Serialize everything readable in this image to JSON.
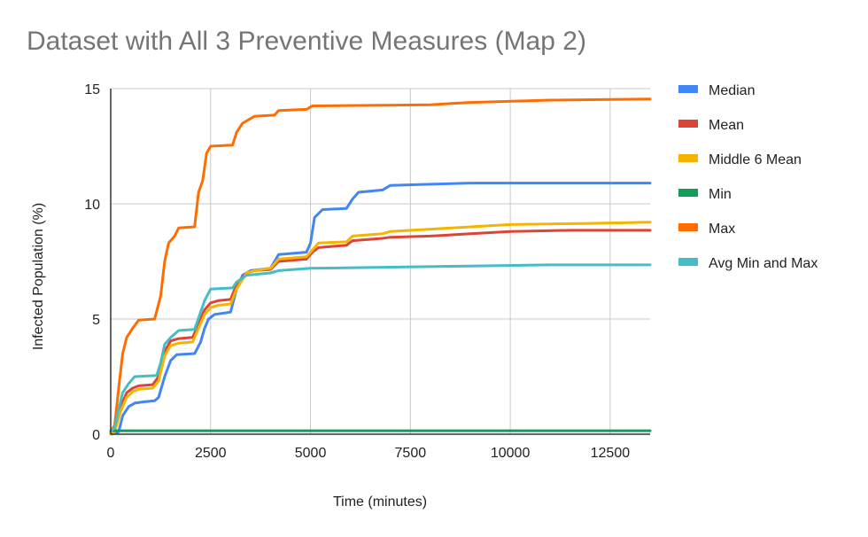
{
  "chart_data": {
    "type": "line",
    "title": "Dataset with All 3 Preventive Measures (Map 2)",
    "xlabel": "Time (minutes)",
    "ylabel": "Infected Population (%)",
    "xlim": [
      0,
      13500
    ],
    "ylim": [
      0,
      15
    ],
    "xticks": [
      0,
      2500,
      5000,
      7500,
      10000,
      12500
    ],
    "yticks": [
      0,
      5,
      10,
      15
    ],
    "grid": true,
    "legend_position": "right",
    "series": [
      {
        "name": "Median",
        "color": "#4285F4",
        "points": [
          [
            0,
            0
          ],
          [
            200,
            0.1
          ],
          [
            300,
            0.8
          ],
          [
            450,
            1.2
          ],
          [
            600,
            1.35
          ],
          [
            800,
            1.4
          ],
          [
            1100,
            1.45
          ],
          [
            1200,
            1.6
          ],
          [
            1350,
            2.5
          ],
          [
            1500,
            3.2
          ],
          [
            1650,
            3.45
          ],
          [
            2100,
            3.5
          ],
          [
            2250,
            4.0
          ],
          [
            2350,
            4.6
          ],
          [
            2450,
            5.0
          ],
          [
            2600,
            5.2
          ],
          [
            3000,
            5.3
          ],
          [
            3150,
            6.3
          ],
          [
            3300,
            6.9
          ],
          [
            3500,
            7.1
          ],
          [
            4000,
            7.2
          ],
          [
            4200,
            7.8
          ],
          [
            4900,
            7.9
          ],
          [
            5000,
            8.3
          ],
          [
            5100,
            9.4
          ],
          [
            5300,
            9.75
          ],
          [
            5900,
            9.8
          ],
          [
            6050,
            10.2
          ],
          [
            6200,
            10.5
          ],
          [
            6800,
            10.6
          ],
          [
            7000,
            10.8
          ],
          [
            8000,
            10.85
          ],
          [
            9000,
            10.9
          ],
          [
            13500,
            10.9
          ]
        ]
      },
      {
        "name": "Mean",
        "color": "#DB4437",
        "points": [
          [
            0,
            0
          ],
          [
            100,
            0.1
          ],
          [
            250,
            1.2
          ],
          [
            400,
            1.8
          ],
          [
            550,
            2.0
          ],
          [
            700,
            2.1
          ],
          [
            1050,
            2.15
          ],
          [
            1200,
            2.5
          ],
          [
            1350,
            3.6
          ],
          [
            1500,
            4.05
          ],
          [
            1700,
            4.15
          ],
          [
            2050,
            4.2
          ],
          [
            2200,
            4.8
          ],
          [
            2350,
            5.4
          ],
          [
            2500,
            5.7
          ],
          [
            2700,
            5.8
          ],
          [
            3000,
            5.85
          ],
          [
            3150,
            6.5
          ],
          [
            3400,
            7.0
          ],
          [
            3600,
            7.1
          ],
          [
            4000,
            7.15
          ],
          [
            4200,
            7.5
          ],
          [
            4900,
            7.6
          ],
          [
            5050,
            7.9
          ],
          [
            5200,
            8.1
          ],
          [
            5900,
            8.2
          ],
          [
            6050,
            8.4
          ],
          [
            6800,
            8.5
          ],
          [
            7000,
            8.55
          ],
          [
            8000,
            8.6
          ],
          [
            9000,
            8.7
          ],
          [
            10000,
            8.8
          ],
          [
            11500,
            8.85
          ],
          [
            13500,
            8.85
          ]
        ]
      },
      {
        "name": "Middle 6 Mean",
        "color": "#F4B400",
        "points": [
          [
            0,
            0
          ],
          [
            100,
            0.1
          ],
          [
            250,
            1.0
          ],
          [
            400,
            1.6
          ],
          [
            550,
            1.85
          ],
          [
            700,
            1.95
          ],
          [
            1050,
            2.0
          ],
          [
            1200,
            2.3
          ],
          [
            1350,
            3.4
          ],
          [
            1500,
            3.85
          ],
          [
            1700,
            3.95
          ],
          [
            2050,
            4.0
          ],
          [
            2200,
            4.6
          ],
          [
            2350,
            5.2
          ],
          [
            2500,
            5.5
          ],
          [
            2700,
            5.6
          ],
          [
            3000,
            5.65
          ],
          [
            3150,
            6.3
          ],
          [
            3400,
            7.0
          ],
          [
            3600,
            7.1
          ],
          [
            4000,
            7.2
          ],
          [
            4200,
            7.6
          ],
          [
            4900,
            7.7
          ],
          [
            5050,
            8.0
          ],
          [
            5200,
            8.3
          ],
          [
            5900,
            8.35
          ],
          [
            6050,
            8.6
          ],
          [
            6800,
            8.7
          ],
          [
            7000,
            8.8
          ],
          [
            8000,
            8.9
          ],
          [
            9000,
            9.0
          ],
          [
            10000,
            9.1
          ],
          [
            12000,
            9.15
          ],
          [
            13500,
            9.2
          ]
        ]
      },
      {
        "name": "Min",
        "color": "#0F9D58",
        "points": [
          [
            0,
            0.15
          ],
          [
            13500,
            0.15
          ]
        ]
      },
      {
        "name": "Max",
        "color": "#FF6D01",
        "points": [
          [
            0,
            0.1
          ],
          [
            100,
            0.4
          ],
          [
            200,
            2.0
          ],
          [
            300,
            3.5
          ],
          [
            400,
            4.2
          ],
          [
            550,
            4.6
          ],
          [
            700,
            4.95
          ],
          [
            1100,
            5.0
          ],
          [
            1250,
            6.0
          ],
          [
            1350,
            7.5
          ],
          [
            1450,
            8.3
          ],
          [
            1600,
            8.6
          ],
          [
            1700,
            8.95
          ],
          [
            2100,
            9.0
          ],
          [
            2200,
            10.5
          ],
          [
            2300,
            11.0
          ],
          [
            2400,
            12.2
          ],
          [
            2500,
            12.5
          ],
          [
            3050,
            12.55
          ],
          [
            3150,
            13.1
          ],
          [
            3300,
            13.5
          ],
          [
            3600,
            13.8
          ],
          [
            4100,
            13.85
          ],
          [
            4200,
            14.05
          ],
          [
            4900,
            14.1
          ],
          [
            5050,
            14.25
          ],
          [
            8000,
            14.3
          ],
          [
            9000,
            14.4
          ],
          [
            11000,
            14.5
          ],
          [
            13500,
            14.55
          ]
        ]
      },
      {
        "name": "Avg Min and Max",
        "color": "#46BDC6",
        "points": [
          [
            0,
            0.1
          ],
          [
            100,
            0.3
          ],
          [
            200,
            1.1
          ],
          [
            300,
            1.8
          ],
          [
            450,
            2.2
          ],
          [
            600,
            2.5
          ],
          [
            1150,
            2.55
          ],
          [
            1250,
            3.1
          ],
          [
            1350,
            3.9
          ],
          [
            1500,
            4.2
          ],
          [
            1700,
            4.5
          ],
          [
            2100,
            4.55
          ],
          [
            2250,
            5.3
          ],
          [
            2350,
            5.8
          ],
          [
            2500,
            6.3
          ],
          [
            3050,
            6.35
          ],
          [
            3150,
            6.6
          ],
          [
            3400,
            6.9
          ],
          [
            4000,
            7.0
          ],
          [
            4200,
            7.1
          ],
          [
            5000,
            7.2
          ],
          [
            7000,
            7.25
          ],
          [
            9000,
            7.3
          ],
          [
            11000,
            7.35
          ],
          [
            13500,
            7.35
          ]
        ]
      }
    ]
  }
}
